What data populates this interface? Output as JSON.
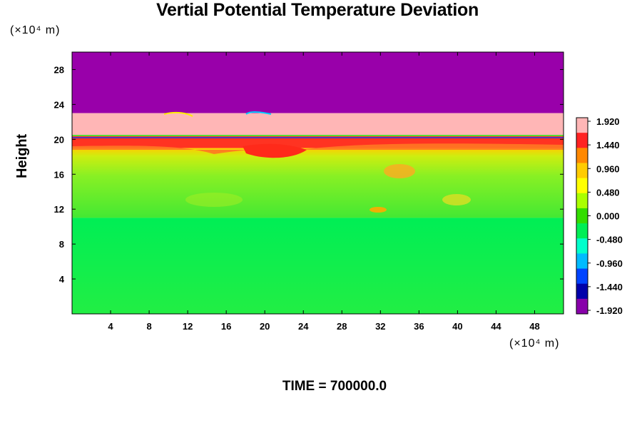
{
  "chart_data": {
    "type": "heatmap",
    "title": "Vertial Potential Temperature Deviation",
    "ylabel": "Height",
    "y_unit": "(×10⁴ m)",
    "x_unit": "(×10⁴ m)",
    "xlim": [
      0,
      51
    ],
    "ylim": [
      0,
      30
    ],
    "x_ticks": [
      "4",
      "8",
      "12",
      "16",
      "20",
      "24",
      "28",
      "32",
      "36",
      "40",
      "44",
      "48"
    ],
    "y_ticks": [
      "4",
      "8",
      "12",
      "16",
      "20",
      "24",
      "28"
    ],
    "colorbar": {
      "min": -1.92,
      "max": 1.92,
      "labels": [
        "1.920",
        "1.440",
        "0.960",
        "0.480",
        "0.000",
        "-0.480",
        "-0.960",
        "-1.440",
        "-1.920"
      ],
      "colors": [
        "#ffb6b6",
        "#ff2222",
        "#ff8800",
        "#ffcc00",
        "#ffff00",
        "#aaff00",
        "#33dd00",
        "#00ee55",
        "#00ffcc",
        "#00bbff",
        "#0044ff",
        "#0000aa",
        "#8800aa"
      ]
    },
    "layers": [
      {
        "y_range": [
          23,
          30
        ],
        "value": -1.92,
        "color": "#9900aa"
      },
      {
        "y_range": [
          20.5,
          23
        ],
        "value": 1.92,
        "color": "#ffb6b6"
      },
      {
        "y_range": [
          19,
          20.5
        ],
        "value": 1.5,
        "color": "#ff3322"
      },
      {
        "y_range": [
          11,
          19
        ],
        "value": 0.3,
        "color": "#88f024"
      },
      {
        "y_range": [
          0,
          11
        ],
        "value": 0.0,
        "color": "#11ee55"
      }
    ]
  },
  "footer": {
    "time_label": "TIME = 700000.0"
  }
}
